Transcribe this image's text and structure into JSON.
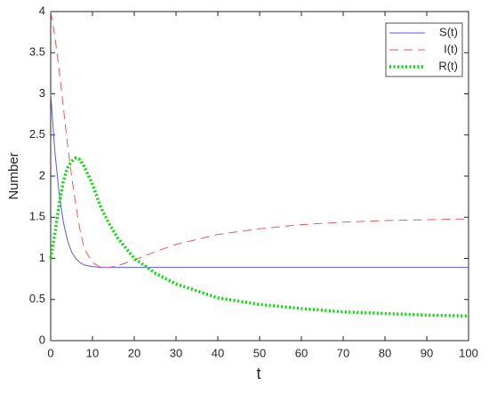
{
  "chart_data": {
    "type": "line",
    "x_label": "t",
    "y_label": "Number",
    "x": [
      0,
      1,
      2,
      3,
      4,
      5,
      6,
      7,
      8,
      10,
      12,
      14,
      16,
      20,
      25,
      30,
      40,
      50,
      60,
      70,
      80,
      90,
      100
    ],
    "series": [
      {
        "name": "S(t)",
        "color": "#5a5ae6",
        "style": "solid",
        "width": 1,
        "values": [
          3,
          2.3,
          1.8,
          1.45,
          1.22,
          1.08,
          1.0,
          0.95,
          0.92,
          0.9,
          0.89,
          0.89,
          0.89,
          0.89,
          0.89,
          0.89,
          0.89,
          0.89,
          0.89,
          0.89,
          0.89,
          0.89,
          0.89
        ]
      },
      {
        "name": "I(t)",
        "color": "#ee5a5a",
        "style": "dashed",
        "width": 1,
        "values": [
          4,
          3.7,
          3.3,
          2.85,
          2.4,
          2.0,
          1.65,
          1.35,
          1.12,
          0.95,
          0.89,
          0.89,
          0.91,
          0.98,
          1.08,
          1.17,
          1.29,
          1.36,
          1.41,
          1.44,
          1.46,
          1.47,
          1.48
        ]
      },
      {
        "name": "R(t)",
        "color": "#00dd00",
        "style": "dotted",
        "width": 3.5,
        "values": [
          1.0,
          1.3,
          1.65,
          1.93,
          2.1,
          2.18,
          2.22,
          2.2,
          2.12,
          1.9,
          1.62,
          1.42,
          1.25,
          1.0,
          0.82,
          0.69,
          0.52,
          0.44,
          0.39,
          0.35,
          0.33,
          0.31,
          0.3
        ]
      }
    ],
    "xlim": [
      0,
      100
    ],
    "xticks": [
      0,
      10,
      20,
      30,
      40,
      50,
      60,
      70,
      80,
      90,
      100
    ],
    "ylim": [
      0,
      4
    ],
    "yticks": [
      0,
      0.5,
      1,
      1.5,
      2,
      2.5,
      3,
      3.5,
      4
    ],
    "grid": false,
    "legend": "top-right"
  }
}
